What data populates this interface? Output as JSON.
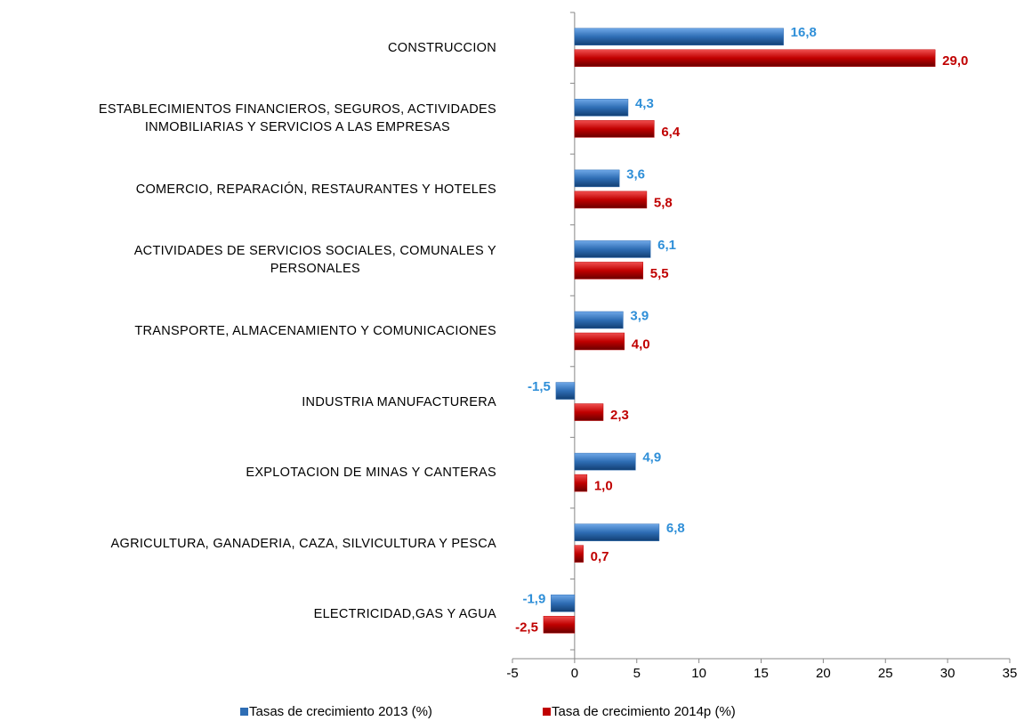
{
  "chart_data": {
    "type": "bar",
    "orientation": "horizontal",
    "categories": [
      "CONSTRUCCION",
      "ESTABLECIMIENTOS FINANCIEROS, SEGUROS, ACTIVIDADES\nINMOBILIARIAS Y SERVICIOS A LAS EMPRESAS",
      "COMERCIO, REPARACIÓN, RESTAURANTES Y HOTELES",
      "ACTIVIDADES DE SERVICIOS SOCIALES, COMUNALES Y\nPERSONALES",
      "TRANSPORTE, ALMACENAMIENTO Y COMUNICACIONES",
      "INDUSTRIA MANUFACTURERA",
      "EXPLOTACION DE MINAS Y CANTERAS",
      "AGRICULTURA, GANADERIA, CAZA, SILVICULTURA Y PESCA",
      "ELECTRICIDAD,GAS Y AGUA"
    ],
    "series": [
      {
        "name": "Tasas de crecimiento 2013 (%)",
        "color": "#2e6db4",
        "label_color": "#2f8fd8",
        "values": [
          16.8,
          4.3,
          3.6,
          6.1,
          3.9,
          -1.5,
          4.9,
          6.8,
          -1.9
        ],
        "value_labels": [
          "16,8",
          "4,3",
          "3,6",
          "6,1",
          "3,9",
          "-1,5",
          "4,9",
          "6,8",
          "-1,9"
        ]
      },
      {
        "name": "Tasa de crecimiento 2014p (%)",
        "color": "#c00000",
        "label_color": "#c00000",
        "values": [
          29.0,
          6.4,
          5.8,
          5.5,
          4.0,
          2.3,
          1.0,
          0.7,
          -2.5
        ],
        "value_labels": [
          "29,0",
          "6,4",
          "5,8",
          "5,5",
          "4,0",
          "2,3",
          "1,0",
          "0,7",
          "-2,5"
        ]
      }
    ],
    "xlim": [
      -5,
      35
    ],
    "xticks": [
      -5,
      0,
      5,
      10,
      15,
      20,
      25,
      30,
      35
    ],
    "grid": false,
    "legend": "bottom"
  }
}
